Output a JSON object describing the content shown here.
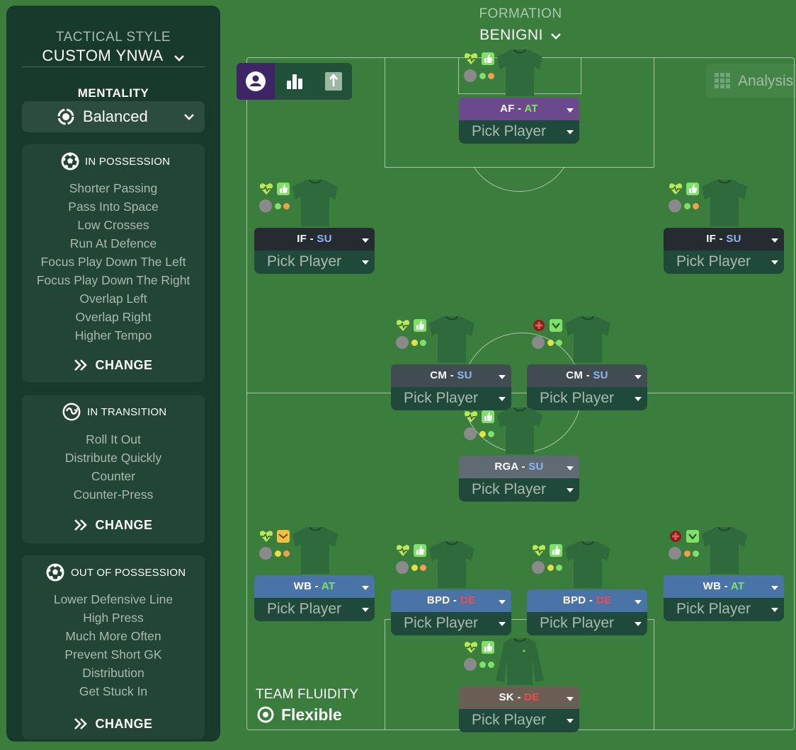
{
  "tactical_style": {
    "label": "TACTICAL STYLE",
    "value": "CUSTOM YNWA"
  },
  "mentality": {
    "label": "MENTALITY",
    "value": "Balanced"
  },
  "in_possession": {
    "title": "IN POSSESSION",
    "items": [
      "Shorter Passing",
      "Pass Into Space",
      "Low Crosses",
      "Run At Defence",
      "Focus Play Down The Left",
      "Focus Play Down The Right",
      "Overlap Left",
      "Overlap Right",
      "Higher Tempo"
    ],
    "change_label": "CHANGE"
  },
  "in_transition": {
    "title": "IN TRANSITION",
    "items": [
      "Roll It Out",
      "Distribute Quickly",
      "Counter",
      "Counter-Press"
    ],
    "change_label": "CHANGE"
  },
  "out_of_possession": {
    "title": "OUT OF POSSESSION",
    "items": [
      "Lower Defensive Line",
      "High Press",
      "Much More Often",
      "Prevent Short GK",
      "Distribution",
      "Get Stuck In"
    ],
    "change_label": "CHANGE"
  },
  "formation": {
    "label": "FORMATION",
    "value": "BENIGNI"
  },
  "analysis_label": "Analysis",
  "team_fluidity": {
    "label": "TEAM FLUIDITY",
    "value": "Flexible"
  },
  "duty_colors": {
    "AT": "#7fe06a",
    "SU": "#8fb8f0",
    "DE": "#f04a4a"
  },
  "players": [
    {
      "position": "AF",
      "separator": " - ",
      "duty": "AT",
      "pick": "Pick Player",
      "role_color": "#6a4a8c",
      "icons": [
        "heart-icon",
        "thumb-icon"
      ],
      "dots": [
        "grey",
        "green",
        "orange"
      ],
      "shirt": "outfield"
    },
    {
      "position": "IF",
      "separator": " - ",
      "duty": "SU",
      "pick": "Pick Player",
      "role_color": "#262b31",
      "icons": [
        "heart-icon",
        "thumb-icon"
      ],
      "dots": [
        "grey",
        "green",
        "orange"
      ],
      "shirt": "outfield"
    },
    {
      "position": "IF",
      "separator": " - ",
      "duty": "SU",
      "pick": "Pick Player",
      "role_color": "#262b31",
      "icons": [
        "heart-icon",
        "thumb-icon"
      ],
      "dots": [
        "grey",
        "green",
        "orange"
      ],
      "shirt": "outfield"
    },
    {
      "position": "CM",
      "separator": " - ",
      "duty": "SU",
      "pick": "Pick Player",
      "role_color": "#414b52",
      "icons": [
        "heart-icon",
        "thumb-icon"
      ],
      "dots": [
        "grey",
        "yellow",
        "green"
      ],
      "shirt": "outfield"
    },
    {
      "position": "CM",
      "separator": " - ",
      "duty": "SU",
      "pick": "Pick Player",
      "role_color": "#414b52",
      "icons": [
        "injury-icon",
        "check-icon"
      ],
      "dots": [
        "grey",
        "yellow",
        "green"
      ],
      "shirt": "outfield"
    },
    {
      "position": "RGA",
      "separator": " - ",
      "duty": "SU",
      "pick": "Pick Player",
      "role_color": "#606a73",
      "icons": [
        "heart-icon",
        "thumb-icon"
      ],
      "dots": [
        "grey",
        "yellow",
        "green"
      ],
      "shirt": "outfield"
    },
    {
      "position": "WB",
      "separator": " - ",
      "duty": "AT",
      "pick": "Pick Player",
      "role_color": "#4a74a8",
      "icons": [
        "heart-icon",
        "envelope-icon"
      ],
      "dots": [
        "grey",
        "yellow",
        "orange"
      ],
      "shirt": "outfield"
    },
    {
      "position": "BPD",
      "separator": " - ",
      "duty": "DE",
      "pick": "Pick Player",
      "role_color": "#4a74a8",
      "icons": [
        "heart-icon",
        "thumb-icon"
      ],
      "dots": [
        "grey",
        "yellow",
        "orange"
      ],
      "shirt": "outfield"
    },
    {
      "position": "BPD",
      "separator": " - ",
      "duty": "DE",
      "pick": "Pick Player",
      "role_color": "#4a74a8",
      "icons": [
        "heart-icon",
        "thumb-icon"
      ],
      "dots": [
        "grey",
        "yellow",
        "green"
      ],
      "shirt": "outfield"
    },
    {
      "position": "WB",
      "separator": " - ",
      "duty": "AT",
      "pick": "Pick Player",
      "role_color": "#4a74a8",
      "icons": [
        "injury-icon",
        "check-icon"
      ],
      "dots": [
        "grey",
        "orange",
        "green"
      ],
      "shirt": "outfield"
    },
    {
      "position": "SK",
      "separator": " - ",
      "duty": "DE",
      "pick": "Pick Player",
      "role_color": "#6b5e55",
      "icons": [
        "heart-icon",
        "thumb-icon"
      ],
      "dots": [
        "grey",
        "green",
        "green"
      ],
      "shirt": "goalkeeper"
    }
  ]
}
